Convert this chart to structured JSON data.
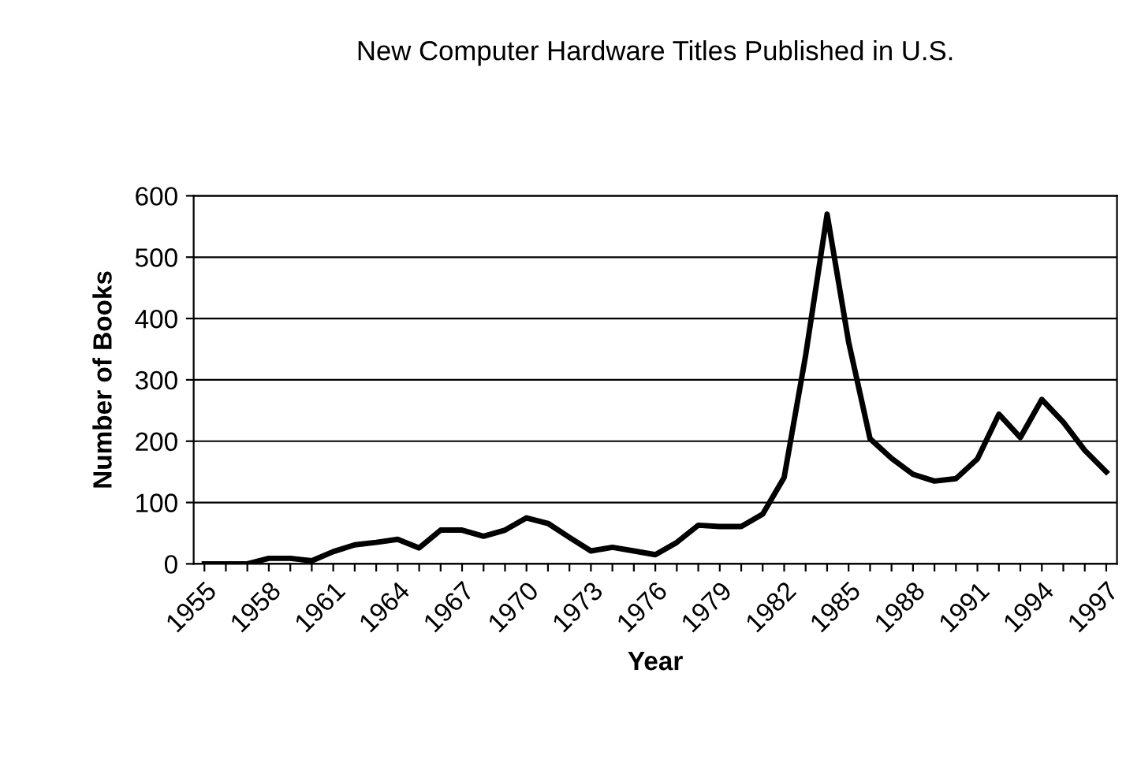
{
  "chart_data": {
    "type": "line",
    "title": "New Computer Hardware Titles Published in U.S.",
    "xlabel": "Year",
    "ylabel": "Number of Books",
    "categories": [
      "1955",
      null,
      null,
      "1958",
      null,
      null,
      "1961",
      null,
      null,
      "1964",
      null,
      null,
      "1967",
      null,
      null,
      "1970",
      null,
      null,
      "1973",
      null,
      null,
      "1976",
      null,
      null,
      "1979",
      null,
      null,
      "1982",
      null,
      null,
      "1985",
      null,
      null,
      "1988",
      null,
      null,
      "1991",
      null,
      null,
      "1994",
      null,
      null,
      "1997"
    ],
    "series": [
      {
        "color": "#000000",
        "values": [
          0,
          0,
          0,
          9,
          9,
          5,
          20,
          31,
          35,
          40,
          26,
          55,
          55,
          45,
          55,
          75,
          66,
          43,
          21,
          27,
          21,
          15,
          35,
          63,
          61,
          61,
          81,
          141,
          340,
          570,
          362,
          204,
          172,
          146,
          135,
          139,
          171,
          244,
          206,
          268,
          231,
          185,
          150
        ]
      }
    ],
    "ylim": [
      0,
      600
    ],
    "yticks": [
      0,
      100,
      200,
      300,
      400,
      500,
      600
    ],
    "grid": "y",
    "legend": false,
    "marker": "none",
    "line_style": "solid"
  }
}
